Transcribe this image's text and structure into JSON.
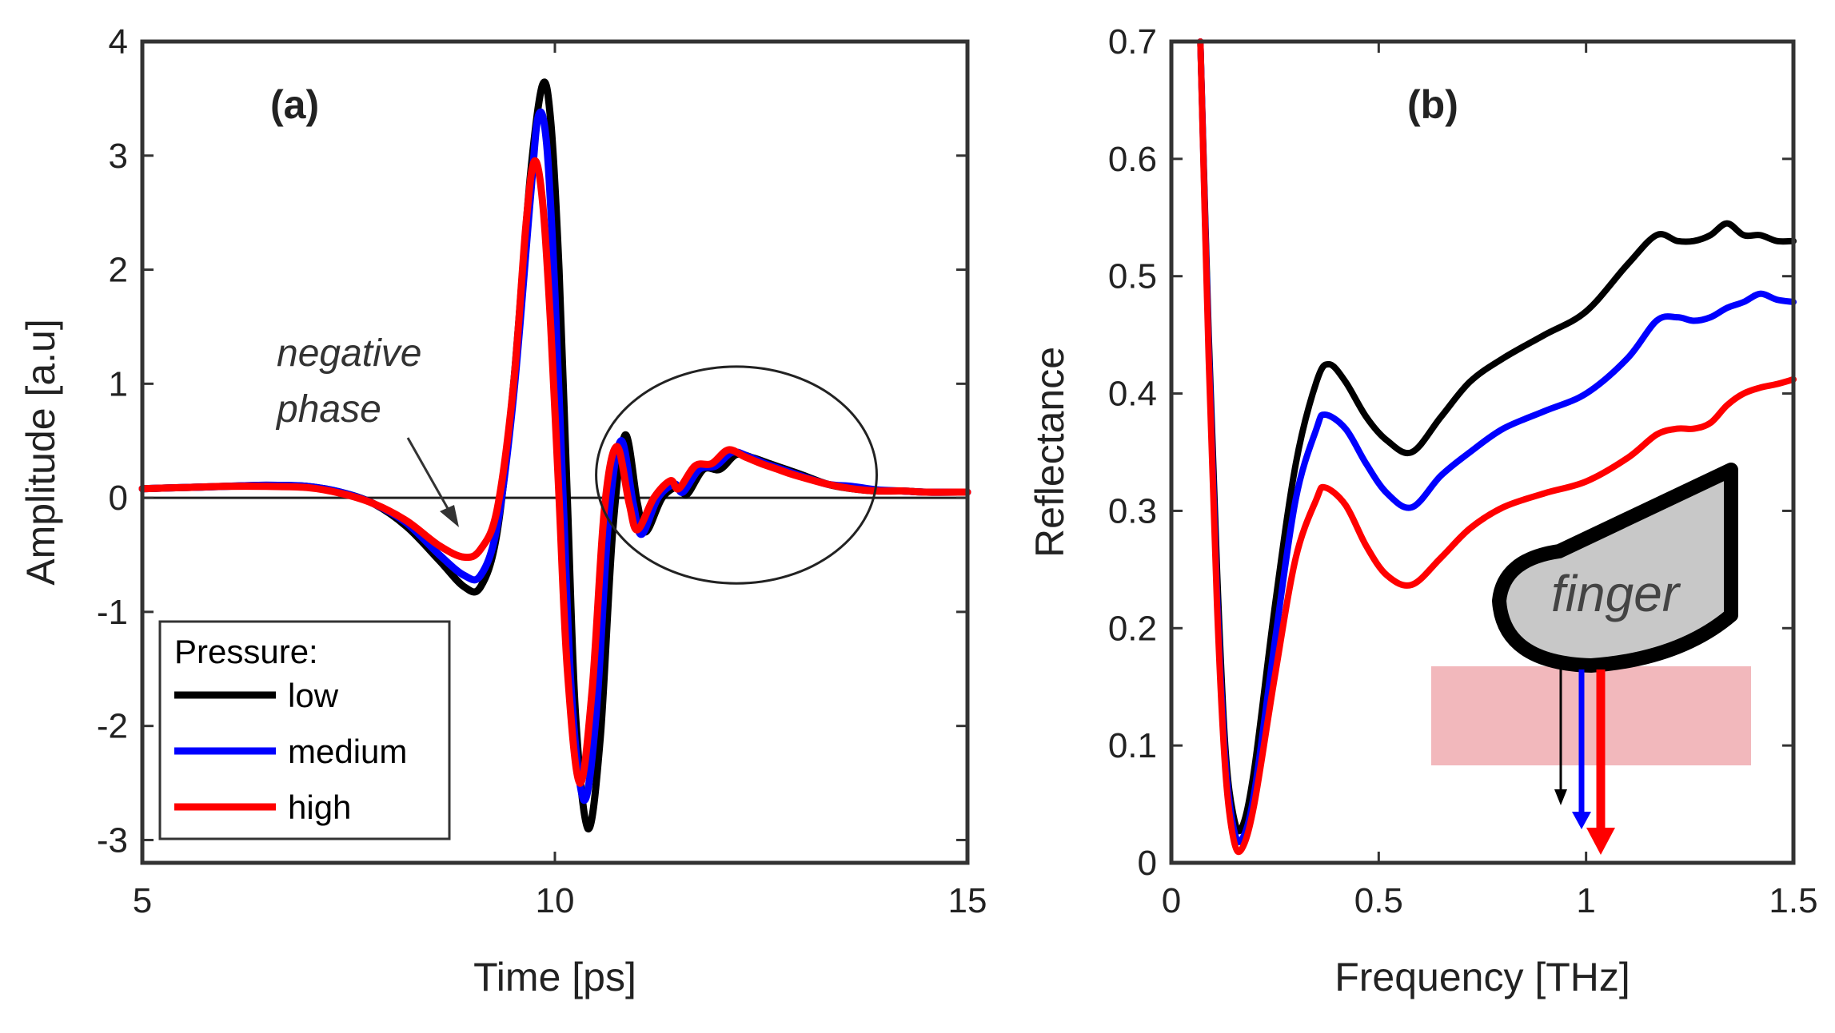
{
  "chart_data": [
    {
      "type": "line",
      "panel_label": "(a)",
      "xlabel": "Time [ps]",
      "ylabel": "Amplitude [a.u]",
      "xlim": [
        5,
        15
      ],
      "ylim": [
        -3.2,
        4
      ],
      "x_ticks": [
        5,
        10,
        15
      ],
      "x_tick_labels": [
        "5",
        "10",
        "15"
      ],
      "y_ticks": [
        -3,
        -2,
        -1,
        0,
        1,
        2,
        3,
        4
      ],
      "y_tick_labels": [
        "-3",
        "-2",
        "-1",
        "0",
        "1",
        "2",
        "3",
        "4"
      ],
      "zero_line": 0,
      "annotation": {
        "lines": [
          "negative",
          "phase"
        ],
        "points_to": [
          8.8,
          -0.2
        ],
        "text_at": [
          8.5,
          1.2
        ]
      },
      "highlight_ellipse": {
        "center": [
          12.2,
          0.2
        ],
        "rx": 1.7,
        "ry": 0.95
      },
      "legend": {
        "title": "Pressure:",
        "entries": [
          "low",
          "medium",
          "high"
        ],
        "placement": "bottom-left"
      },
      "series": [
        {
          "name": "low",
          "color": "#000000",
          "x": [
            5,
            5.5,
            6,
            6.5,
            7,
            7.4,
            7.8,
            8.2,
            8.6,
            8.9,
            9.1,
            9.3,
            9.5,
            9.7,
            9.85,
            9.95,
            10.05,
            10.15,
            10.25,
            10.4,
            10.55,
            10.7,
            10.85,
            11,
            11.1,
            11.3,
            11.5,
            11.6,
            11.8,
            12,
            12.2,
            12.4,
            12.6,
            12.8,
            13,
            13.3,
            13.6,
            13.9,
            14.2,
            14.5,
            15
          ],
          "y": [
            0.08,
            0.09,
            0.1,
            0.11,
            0.1,
            0.05,
            -0.05,
            -0.25,
            -0.55,
            -0.78,
            -0.78,
            -0.3,
            1.0,
            2.8,
            3.62,
            3.3,
            2.0,
            0.0,
            -1.9,
            -2.9,
            -2.1,
            -0.3,
            0.55,
            -0.05,
            -0.3,
            0.0,
            0.1,
            0.03,
            0.25,
            0.25,
            0.38,
            0.35,
            0.3,
            0.25,
            0.2,
            0.12,
            0.08,
            0.06,
            0.06,
            0.05,
            0.05
          ]
        },
        {
          "name": "medium",
          "color": "#0000ff",
          "x": [
            5,
            5.5,
            6,
            6.5,
            7,
            7.4,
            7.8,
            8.2,
            8.6,
            8.9,
            9.1,
            9.3,
            9.5,
            9.7,
            9.8,
            9.9,
            10.0,
            10.1,
            10.2,
            10.35,
            10.5,
            10.65,
            10.8,
            10.95,
            11.05,
            11.25,
            11.45,
            11.55,
            11.75,
            11.95,
            12.15,
            12.35,
            12.55,
            12.75,
            12.95,
            13.3,
            13.6,
            13.9,
            14.2,
            14.5,
            15
          ],
          "y": [
            0.08,
            0.09,
            0.1,
            0.11,
            0.1,
            0.05,
            -0.05,
            -0.22,
            -0.5,
            -0.68,
            -0.68,
            -0.25,
            0.9,
            2.6,
            3.35,
            3.1,
            1.8,
            0.0,
            -1.7,
            -2.65,
            -1.9,
            -0.2,
            0.5,
            -0.05,
            -0.32,
            0.0,
            0.12,
            0.05,
            0.25,
            0.28,
            0.4,
            0.36,
            0.3,
            0.25,
            0.2,
            0.12,
            0.1,
            0.07,
            0.06,
            0.05,
            0.05
          ]
        },
        {
          "name": "high",
          "color": "#ff0000",
          "x": [
            5,
            5.5,
            6,
            6.5,
            7,
            7.4,
            7.8,
            8.2,
            8.6,
            8.9,
            9.1,
            9.3,
            9.5,
            9.65,
            9.75,
            9.85,
            9.95,
            10.05,
            10.15,
            10.3,
            10.45,
            10.6,
            10.75,
            10.9,
            11.0,
            11.2,
            11.4,
            11.5,
            11.7,
            11.9,
            12.1,
            12.3,
            12.5,
            12.7,
            12.9,
            13.3,
            13.6,
            13.9,
            14.2,
            14.5,
            15
          ],
          "y": [
            0.08,
            0.09,
            0.1,
            0.1,
            0.09,
            0.04,
            -0.05,
            -0.2,
            -0.42,
            -0.52,
            -0.45,
            -0.1,
            1.0,
            2.4,
            2.95,
            2.6,
            1.5,
            0.0,
            -1.5,
            -2.5,
            -1.7,
            -0.1,
            0.45,
            -0.05,
            -0.28,
            0.0,
            0.15,
            0.08,
            0.28,
            0.3,
            0.42,
            0.36,
            0.3,
            0.25,
            0.2,
            0.12,
            0.08,
            0.06,
            0.06,
            0.05,
            0.05
          ]
        }
      ]
    },
    {
      "type": "line",
      "panel_label": "(b)",
      "xlabel": "Frequency [THz]",
      "ylabel": "Reflectance",
      "xlim": [
        0,
        1.5
      ],
      "ylim": [
        0,
        0.7
      ],
      "x_ticks": [
        0,
        0.5,
        1,
        1.5
      ],
      "x_tick_labels": [
        "0",
        "0.5",
        "1",
        "1.5"
      ],
      "y_ticks": [
        0,
        0.1,
        0.2,
        0.3,
        0.4,
        0.5,
        0.6,
        0.7
      ],
      "y_tick_labels": [
        "0",
        "0.1",
        "0.2",
        "0.3",
        "0.4",
        "0.5",
        "0.6",
        "0.7"
      ],
      "inset": {
        "label": "finger",
        "arrow_colors": [
          "#000000",
          "#0000ff",
          "#ff0000"
        ]
      },
      "series": [
        {
          "name": "low",
          "color": "#000000",
          "x": [
            0.07,
            0.09,
            0.11,
            0.13,
            0.15,
            0.17,
            0.2,
            0.25,
            0.3,
            0.35,
            0.38,
            0.42,
            0.47,
            0.52,
            0.58,
            0.65,
            0.72,
            0.8,
            0.9,
            1.0,
            1.1,
            1.17,
            1.22,
            1.26,
            1.3,
            1.34,
            1.38,
            1.42,
            1.46,
            1.5
          ],
          "y": [
            0.7,
            0.45,
            0.25,
            0.1,
            0.04,
            0.03,
            0.08,
            0.22,
            0.34,
            0.41,
            0.425,
            0.41,
            0.38,
            0.36,
            0.35,
            0.38,
            0.41,
            0.43,
            0.45,
            0.47,
            0.51,
            0.535,
            0.53,
            0.53,
            0.535,
            0.545,
            0.535,
            0.535,
            0.53,
            0.53
          ]
        },
        {
          "name": "medium",
          "color": "#0000ff",
          "x": [
            0.07,
            0.09,
            0.11,
            0.13,
            0.15,
            0.17,
            0.2,
            0.25,
            0.3,
            0.35,
            0.37,
            0.42,
            0.47,
            0.52,
            0.58,
            0.65,
            0.72,
            0.8,
            0.9,
            1.0,
            1.1,
            1.17,
            1.22,
            1.26,
            1.3,
            1.34,
            1.38,
            1.42,
            1.46,
            1.5
          ],
          "y": [
            0.7,
            0.44,
            0.23,
            0.09,
            0.03,
            0.02,
            0.06,
            0.19,
            0.31,
            0.37,
            0.382,
            0.37,
            0.34,
            0.315,
            0.303,
            0.33,
            0.35,
            0.37,
            0.385,
            0.4,
            0.43,
            0.462,
            0.465,
            0.462,
            0.465,
            0.473,
            0.478,
            0.485,
            0.48,
            0.478
          ]
        },
        {
          "name": "high",
          "color": "#ff0000",
          "x": [
            0.07,
            0.09,
            0.11,
            0.13,
            0.15,
            0.17,
            0.2,
            0.25,
            0.3,
            0.35,
            0.37,
            0.42,
            0.47,
            0.52,
            0.58,
            0.65,
            0.72,
            0.8,
            0.9,
            1.0,
            1.1,
            1.17,
            1.22,
            1.26,
            1.3,
            1.34,
            1.38,
            1.42,
            1.46,
            1.5
          ],
          "y": [
            0.7,
            0.43,
            0.22,
            0.08,
            0.02,
            0.012,
            0.05,
            0.16,
            0.26,
            0.31,
            0.32,
            0.305,
            0.27,
            0.245,
            0.237,
            0.26,
            0.285,
            0.303,
            0.315,
            0.325,
            0.345,
            0.365,
            0.37,
            0.37,
            0.375,
            0.39,
            0.4,
            0.405,
            0.408,
            0.412
          ]
        }
      ]
    }
  ]
}
